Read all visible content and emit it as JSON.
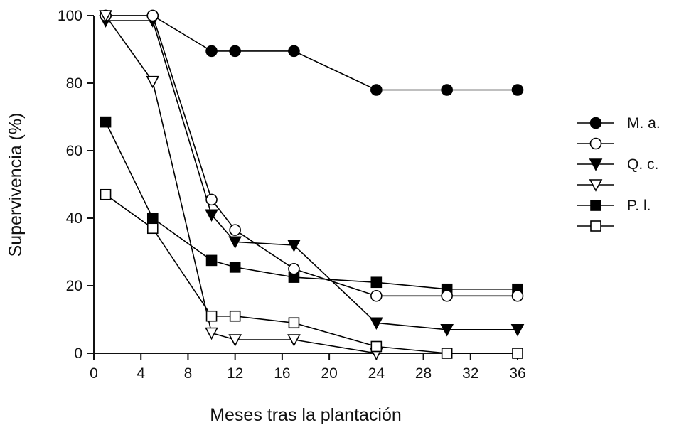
{
  "chart_data": {
    "type": "line",
    "xlabel": "Meses tras la plantación",
    "ylabel": "Supervivencia (%)",
    "xlim": [
      0,
      36
    ],
    "ylim": [
      0,
      100
    ],
    "xticks": [
      0,
      4,
      8,
      12,
      16,
      20,
      24,
      28,
      32,
      36
    ],
    "yticks": [
      0,
      20,
      40,
      60,
      80,
      100
    ],
    "grid": false,
    "legend_position": "right",
    "series": [
      {
        "name": "M. a.",
        "marker": "circle",
        "fill": "filled",
        "x": [
          1,
          5,
          10,
          12,
          17,
          24,
          30,
          36
        ],
        "y": [
          100,
          100,
          89.5,
          89.5,
          89.5,
          78,
          78,
          78
        ]
      },
      {
        "name": "",
        "marker": "circle",
        "fill": "open",
        "x": [
          1,
          5,
          10,
          12,
          17,
          24,
          30,
          36
        ],
        "y": [
          100,
          100,
          45.5,
          36.5,
          25,
          17,
          17,
          17
        ]
      },
      {
        "name": "Q. c.",
        "marker": "triangle-down",
        "fill": "filled",
        "x": [
          1,
          5,
          10,
          12,
          17,
          24,
          30,
          36
        ],
        "y": [
          98.5,
          98.5,
          41,
          33,
          32,
          9,
          7,
          7
        ]
      },
      {
        "name": "",
        "marker": "triangle-down",
        "fill": "open",
        "x": [
          1,
          5,
          10,
          12,
          17,
          24
        ],
        "y": [
          100,
          80.5,
          6,
          4,
          4,
          0
        ]
      },
      {
        "name": "P. l.",
        "marker": "square",
        "fill": "filled",
        "x": [
          1,
          5,
          10,
          12,
          17,
          24,
          30,
          36
        ],
        "y": [
          68.5,
          40,
          27.5,
          25.5,
          22.5,
          21,
          19,
          19
        ]
      },
      {
        "name": "",
        "marker": "square",
        "fill": "open",
        "x": [
          1,
          5,
          10,
          12,
          17,
          24,
          30,
          36
        ],
        "y": [
          47,
          37,
          11,
          11,
          9,
          2,
          0,
          0
        ]
      }
    ]
  }
}
